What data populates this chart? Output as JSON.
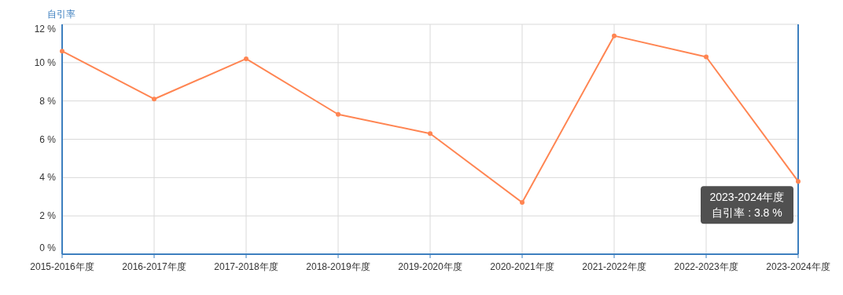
{
  "chart_data": {
    "type": "line",
    "ylabel": "自引率",
    "categories": [
      "2015-2016年度",
      "2016-2017年度",
      "2017-2018年度",
      "2018-2019年度",
      "2019-2020年度",
      "2020-2021年度",
      "2021-2022年度",
      "2022-2023年度",
      "2023-2024年度"
    ],
    "series": [
      {
        "color": "#ff8552",
        "values": [
          10.6,
          8.1,
          10.2,
          7.3,
          6.3,
          2.7,
          11.4,
          10.3,
          3.8
        ]
      }
    ],
    "ylim": [
      0,
      12
    ],
    "yticks": [
      {
        "value": 0,
        "label": "0 %"
      },
      {
        "value": 2,
        "label": "2 %"
      },
      {
        "value": 4,
        "label": "4 %"
      },
      {
        "value": 6,
        "label": "6 %"
      },
      {
        "value": 8,
        "label": "8 %"
      },
      {
        "value": 10,
        "label": "10 %"
      },
      {
        "value": 12,
        "label": "12 %"
      }
    ],
    "grid": true,
    "marker": "circle",
    "line_style": "solid",
    "annotations": [
      {
        "text": "2023-2024年度",
        "x": "2023-2024年度",
        "y": 3.8
      },
      {
        "text": "自引率 : 3.8 %",
        "x": "2023-2024年度",
        "y": 3.8
      }
    ]
  }
}
